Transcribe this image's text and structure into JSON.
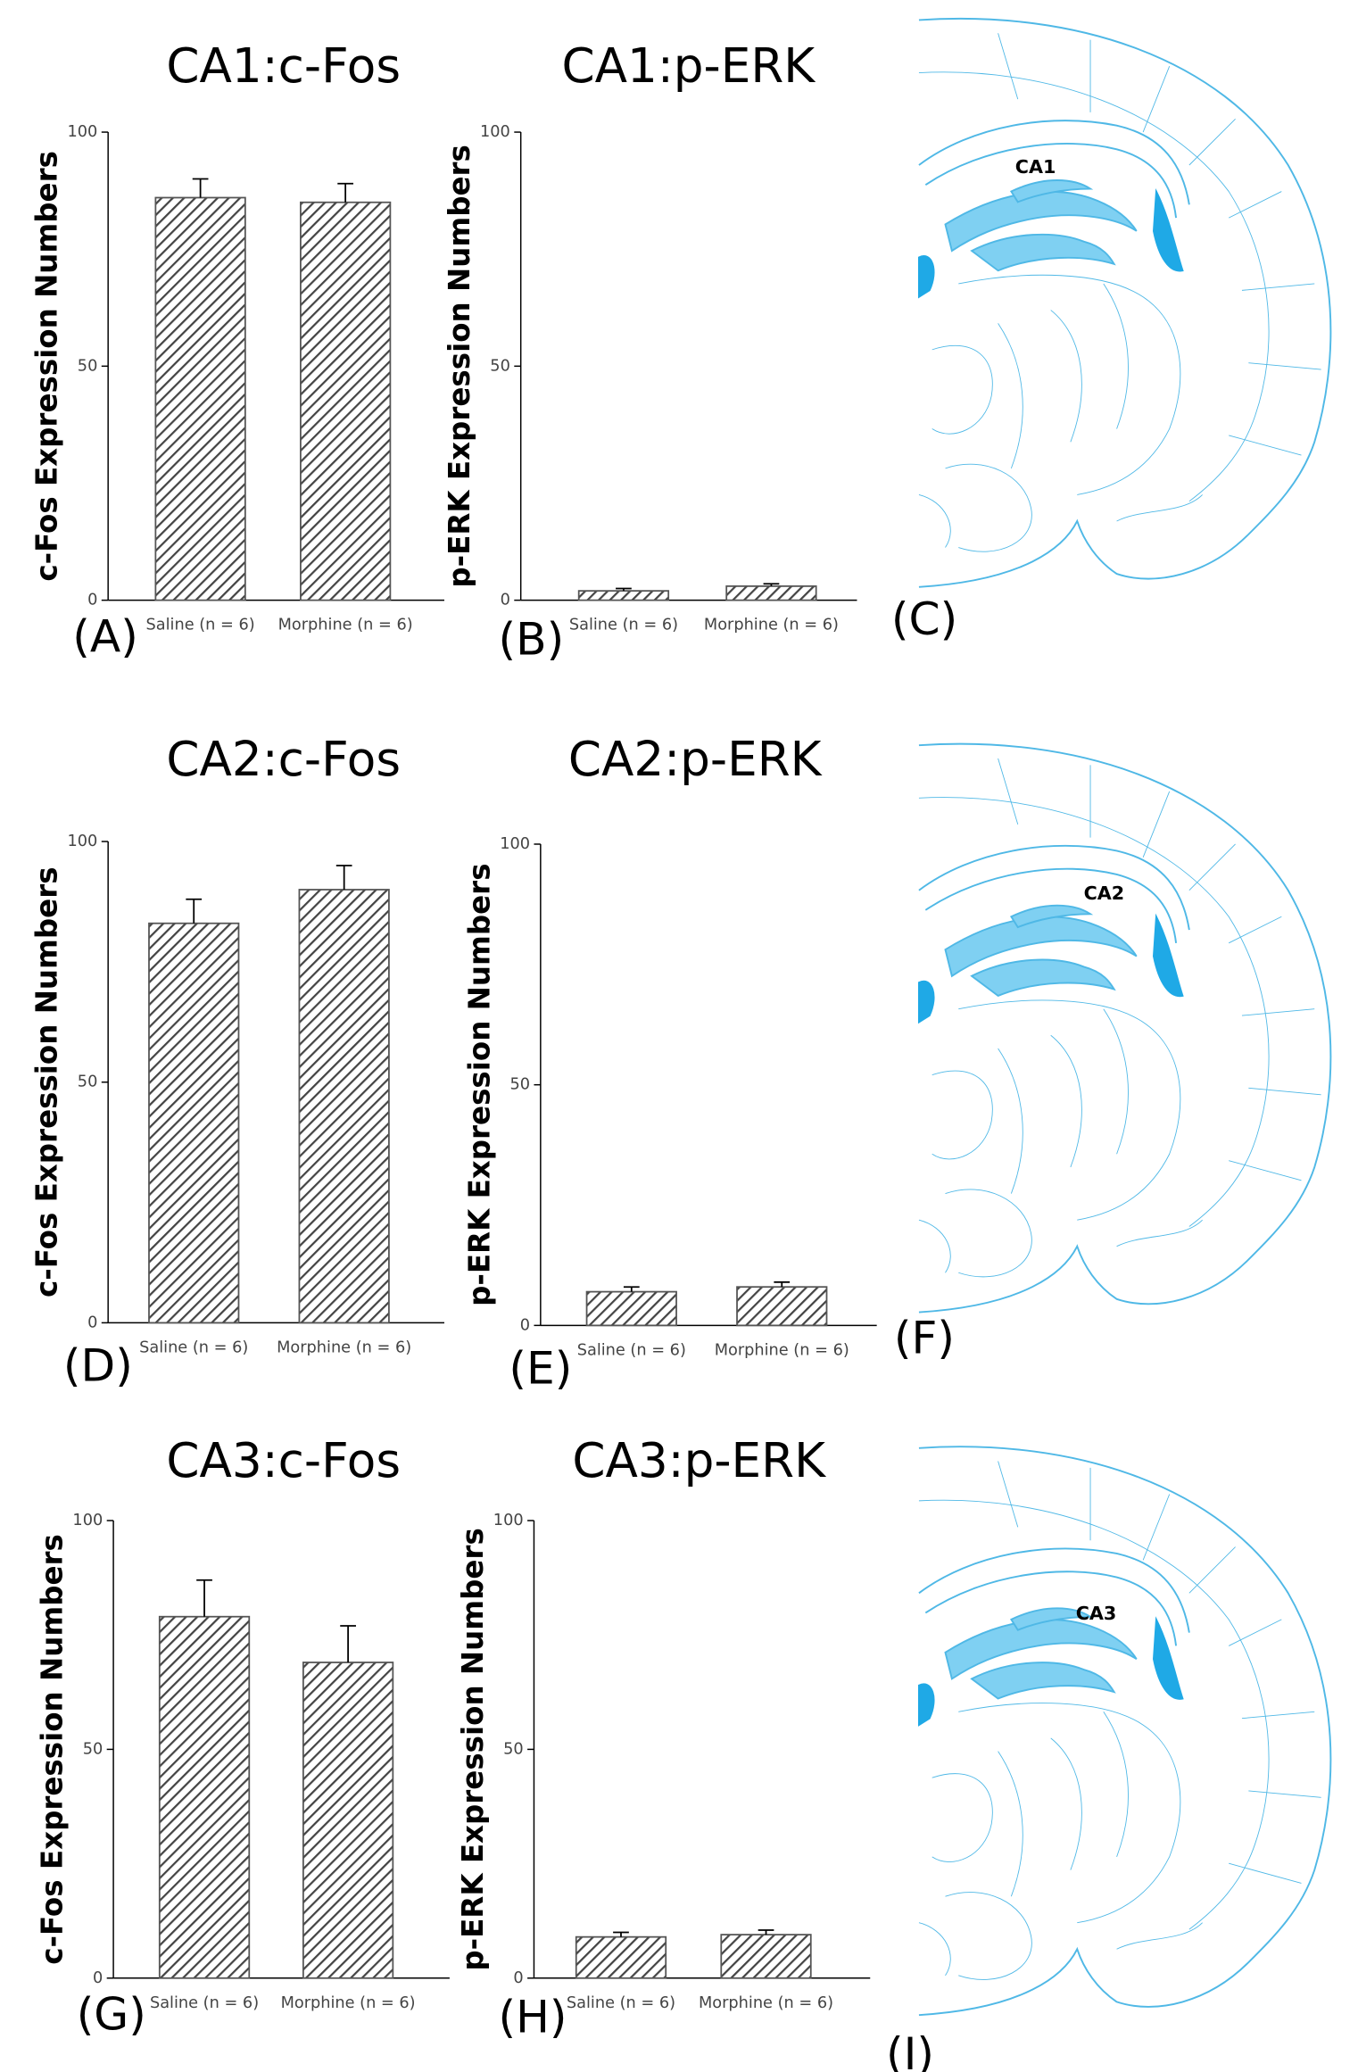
{
  "chart_data": [
    {
      "type": "bar",
      "title": "CA1:c-Fos",
      "ylabel": "c-Fos Expression Numbers",
      "categories": [
        "Saline (n = 6)",
        "Morphine (n = 6)"
      ],
      "values": [
        86,
        85
      ],
      "errors": [
        4,
        4
      ],
      "ylim": [
        0,
        100
      ],
      "yticks": [
        0,
        50,
        100
      ],
      "color": "#555555"
    },
    {
      "type": "bar",
      "title": "CA1:p-ERK",
      "ylabel": "p-ERK Expression Numbers",
      "categories": [
        "Saline (n = 6)",
        "Morphine (n = 6)"
      ],
      "values": [
        2,
        3
      ],
      "errors": [
        0.5,
        0.5
      ],
      "ylim": [
        0,
        100
      ],
      "yticks": [
        0,
        50,
        100
      ],
      "color": "#555555"
    },
    {
      "type": "bar",
      "title": "CA2:c-Fos",
      "ylabel": "c-Fos Expression Numbers",
      "categories": [
        "Saline (n = 6)",
        "Morphine (n = 6)"
      ],
      "values": [
        83,
        90
      ],
      "errors": [
        5,
        5
      ],
      "ylim": [
        0,
        100
      ],
      "yticks": [
        0,
        50,
        100
      ],
      "color": "#555555"
    },
    {
      "type": "bar",
      "title": "CA2:p-ERK",
      "ylabel": "p-ERK Expression Numbers",
      "categories": [
        "Saline (n = 6)",
        "Morphine (n = 6)"
      ],
      "values": [
        7,
        8
      ],
      "errors": [
        1,
        1
      ],
      "ylim": [
        0,
        100
      ],
      "yticks": [
        0,
        50,
        100
      ],
      "color": "#555555"
    },
    {
      "type": "bar",
      "title": "CA3:c-Fos",
      "ylabel": "c-Fos Expression Numbers",
      "categories": [
        "Saline (n = 6)",
        "Morphine (n = 6)"
      ],
      "values": [
        79,
        69
      ],
      "errors": [
        8,
        8
      ],
      "ylim": [
        0,
        100
      ],
      "yticks": [
        0,
        50,
        100
      ],
      "color": "#555555"
    },
    {
      "type": "bar",
      "title": "CA3:p-ERK",
      "ylabel": "p-ERK Expression Numbers",
      "categories": [
        "Saline (n = 6)",
        "Morphine (n = 6)"
      ],
      "values": [
        9,
        9.5
      ],
      "errors": [
        1,
        1
      ],
      "ylim": [
        0,
        100
      ],
      "yticks": [
        0,
        50,
        100
      ],
      "color": "#555555"
    }
  ],
  "panel_labels": [
    "(A)",
    "(B)",
    "(C)",
    "(D)",
    "(E)",
    "(F)",
    "(G)",
    "(H)",
    "(I)"
  ],
  "region_labels": [
    "CA1",
    "CA2",
    "CA3"
  ]
}
